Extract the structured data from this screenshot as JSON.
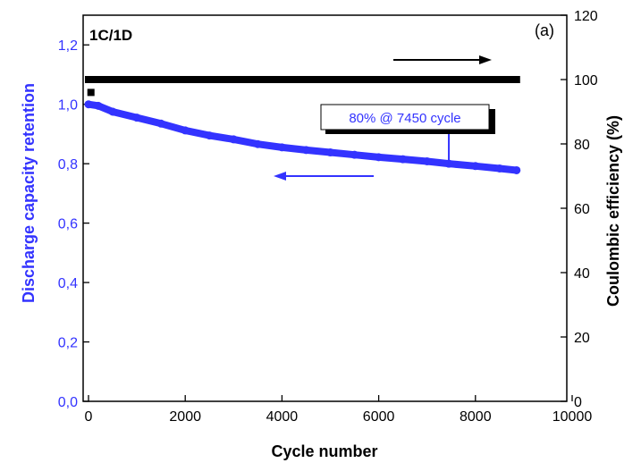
{
  "chart_data": {
    "type": "scatter",
    "panel_label": "(a)",
    "condition_label": "1C/1D",
    "xlabel": "Cycle number",
    "ylabel_left": "Discharge capacity retention",
    "ylabel_right": "Coulombic efficiency (%)",
    "xlim": [
      0,
      10000
    ],
    "ylim_left": [
      0.0,
      1.3
    ],
    "ylim_right": [
      0,
      120
    ],
    "x_ticks": [
      "0",
      "2000",
      "4000",
      "6000",
      "8000",
      "10000"
    ],
    "y_left_ticks": [
      "0,0",
      "0,2",
      "0,4",
      "0,6",
      "0,8",
      "1,0",
      "1,2"
    ],
    "y_right_ticks": [
      "0",
      "20",
      "40",
      "60",
      "80",
      "100",
      "120"
    ],
    "grid": false,
    "colors": {
      "retention": "#3333ff",
      "efficiency": "#000000",
      "axis": "#000000"
    },
    "series": [
      {
        "axis": "left",
        "x": [
          0,
          200,
          500,
          1000,
          1500,
          2000,
          2500,
          3000,
          3500,
          4000,
          4500,
          5000,
          5500,
          6000,
          6500,
          7000,
          7450,
          8000,
          8500,
          8850
        ],
        "values": [
          1.0,
          0.995,
          0.975,
          0.955,
          0.935,
          0.912,
          0.895,
          0.882,
          0.866,
          0.855,
          0.846,
          0.838,
          0.83,
          0.822,
          0.815,
          0.808,
          0.8,
          0.792,
          0.784,
          0.778
        ]
      },
      {
        "axis": "right",
        "x": [
          0,
          500,
          1000,
          2000,
          3000,
          4000,
          5000,
          6000,
          7000,
          8000,
          8850
        ],
        "values": [
          100,
          100,
          100,
          100,
          100,
          100,
          100,
          100,
          100,
          100,
          100
        ],
        "initial_point": {
          "x": 50,
          "y": 96
        }
      }
    ],
    "annotations": [
      {
        "text": "80% @ 7450 cycle",
        "x": 7450,
        "y": 0.8
      }
    ]
  }
}
